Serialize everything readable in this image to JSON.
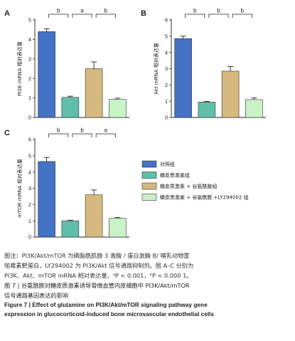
{
  "chart_data": [
    {
      "panel": "A",
      "type": "bar",
      "ylabel": "PI3K mRNA 相对表达量",
      "ylim": [
        0,
        5
      ],
      "yticks": [
        "0",
        "1",
        "2",
        "3",
        "4",
        "5"
      ],
      "values": [
        4.4,
        1.03,
        2.5,
        0.93
      ],
      "errors": [
        0.15,
        0.06,
        0.35,
        0.06
      ],
      "colors": [
        "#4472c4",
        "#5fbfa8",
        "#d6b97e",
        "#c9f2c7"
      ],
      "significance": [
        {
          "from": 0,
          "to": 1,
          "label": "b"
        },
        {
          "from": 1,
          "to": 2,
          "label": "a"
        },
        {
          "from": 2,
          "to": 3,
          "label": "b"
        }
      ]
    },
    {
      "panel": "B",
      "type": "bar",
      "ylabel": "Akt mRNA 相对表达量",
      "ylim": [
        0,
        6
      ],
      "yticks": [
        "0",
        "1",
        "2",
        "3",
        "4",
        "5",
        "6"
      ],
      "values": [
        4.85,
        0.95,
        2.85,
        1.1
      ],
      "errors": [
        0.15,
        0.04,
        0.28,
        0.1
      ],
      "colors": [
        "#4472c4",
        "#5fbfa8",
        "#d6b97e",
        "#c9f2c7"
      ],
      "significance": [
        {
          "from": 0,
          "to": 1,
          "label": "b"
        },
        {
          "from": 1,
          "to": 2,
          "label": "b"
        },
        {
          "from": 2,
          "to": 3,
          "label": "b"
        }
      ]
    },
    {
      "panel": "C",
      "type": "bar",
      "ylabel": "mTOR mRNA 相对表达量",
      "ylim": [
        0,
        6
      ],
      "yticks": [
        "0",
        "1",
        "2",
        "3",
        "4",
        "5",
        "6"
      ],
      "values": [
        4.65,
        1.0,
        2.6,
        1.15
      ],
      "errors": [
        0.25,
        0.04,
        0.3,
        0.05
      ],
      "colors": [
        "#4472c4",
        "#5fbfa8",
        "#d6b97e",
        "#c9f2c7"
      ],
      "significance": [
        {
          "from": 0,
          "to": 1,
          "label": "b"
        },
        {
          "from": 1,
          "to": 2,
          "label": "b"
        },
        {
          "from": 2,
          "to": 3,
          "label": "a"
        }
      ]
    }
  ],
  "legend": [
    {
      "label": "对照组",
      "color": "#4472c4"
    },
    {
      "label": "糖皮质激素组",
      "color": "#5fbfa8"
    },
    {
      "label": "糖皮质激素 + 谷氨酰胺组",
      "color": "#d6b97e"
    },
    {
      "label": "糖皮质激素 + 谷氨酰胺 +LY294002 组",
      "color": "#c9f2c7"
    }
  ],
  "caption": {
    "note_lines": [
      "图注：PI3K/Akt/mTOR 为磷脂酰肌醇 3 激酶 / 蛋白激酶 B/ 哺乳动物雷",
      "帕霉素靶蛋白，LY294002 为 PI3K/Akt 信号通路抑制剂。图 A–C 分别为",
      "PI3K、Akt、mTOR mRNA 相对表达量，ᵃP < 0.001，ᵇP < 0.000 1。"
    ],
    "figure_title_cn_lines": [
      "图 7 | 谷氨酰胺对糖皮质激素诱导骨微血管内皮细胞中 PI3K/Akt/mTOR",
      "信号通路基因表达的影响"
    ],
    "figure_title_en_lines": [
      "Figure 7 | Effect of glutamine on PI3K/Akt/mTOR signaling pathway gene",
      "expression in glucocorticoid-induced bone microvascular endothelial cells"
    ]
  }
}
